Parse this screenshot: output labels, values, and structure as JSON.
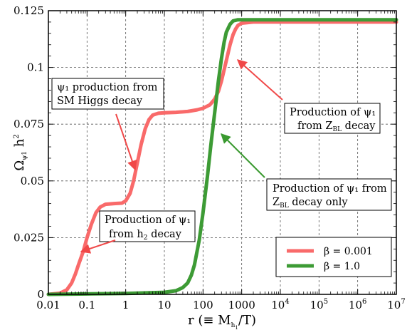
{
  "chart_data": {
    "type": "line",
    "xscale": "log",
    "xlim": [
      0.01,
      10000000
    ],
    "ylim": [
      0,
      0.125
    ],
    "grid": true,
    "xlabel": {
      "main": "r (≡ M",
      "sub1": "h",
      "sub2": "1",
      "tail": "/T)"
    },
    "ylabel": {
      "main": "Ω",
      "sub": "ψ1",
      "tail": " h",
      "sup": "2"
    },
    "x_ticks": [
      {
        "value": 0.01,
        "base": "0.01",
        "exp": ""
      },
      {
        "value": 0.1,
        "base": "0.1",
        "exp": ""
      },
      {
        "value": 1,
        "base": "1",
        "exp": ""
      },
      {
        "value": 10,
        "base": "10",
        "exp": ""
      },
      {
        "value": 100,
        "base": "100",
        "exp": ""
      },
      {
        "value": 1000,
        "base": "1000",
        "exp": ""
      },
      {
        "value": 10000,
        "base": "10",
        "exp": "4"
      },
      {
        "value": 100000,
        "base": "10",
        "exp": "5"
      },
      {
        "value": 1000000,
        "base": "10",
        "exp": "6"
      },
      {
        "value": 10000000,
        "base": "10",
        "exp": "7"
      }
    ],
    "y_ticks": [
      {
        "value": 0,
        "label": "0"
      },
      {
        "value": 0.025,
        "label": "0.025"
      },
      {
        "value": 0.05,
        "label": "0.05"
      },
      {
        "value": 0.075,
        "label": "0.075"
      },
      {
        "value": 0.1,
        "label": "0.1"
      },
      {
        "value": 0.125,
        "label": "0.125"
      }
    ],
    "series": [
      {
        "name": "β = 0.001",
        "color": "#f96a6a",
        "points": [
          [
            0.01,
            0.0
          ],
          [
            0.02,
            0.0005
          ],
          [
            0.03,
            0.002
          ],
          [
            0.04,
            0.005
          ],
          [
            0.05,
            0.009
          ],
          [
            0.06,
            0.013
          ],
          [
            0.08,
            0.019
          ],
          [
            0.1,
            0.025
          ],
          [
            0.13,
            0.031
          ],
          [
            0.17,
            0.036
          ],
          [
            0.22,
            0.0385
          ],
          [
            0.3,
            0.0397
          ],
          [
            0.5,
            0.04
          ],
          [
            0.8,
            0.0402
          ],
          [
            1.0,
            0.0412
          ],
          [
            1.3,
            0.0445
          ],
          [
            1.6,
            0.05
          ],
          [
            2.0,
            0.058
          ],
          [
            2.5,
            0.066
          ],
          [
            3.2,
            0.073
          ],
          [
            4.0,
            0.077
          ],
          [
            5.0,
            0.079
          ],
          [
            7.0,
            0.0798
          ],
          [
            10,
            0.08
          ],
          [
            20,
            0.0802
          ],
          [
            40,
            0.0806
          ],
          [
            70,
            0.0813
          ],
          [
            100,
            0.082
          ],
          [
            150,
            0.0835
          ],
          [
            200,
            0.086
          ],
          [
            250,
            0.0895
          ],
          [
            300,
            0.094
          ],
          [
            400,
            0.103
          ],
          [
            500,
            0.11
          ],
          [
            600,
            0.1145
          ],
          [
            700,
            0.117
          ],
          [
            800,
            0.1185
          ],
          [
            1000,
            0.1195
          ],
          [
            2000,
            0.12
          ],
          [
            10000000,
            0.12
          ]
        ]
      },
      {
        "name": "β = 1.0",
        "color": "#3d9b35",
        "points": [
          [
            0.01,
            0.0
          ],
          [
            0.1,
            0.0002
          ],
          [
            1,
            0.0004
          ],
          [
            10,
            0.0009
          ],
          [
            20,
            0.0016
          ],
          [
            30,
            0.003
          ],
          [
            40,
            0.005
          ],
          [
            50,
            0.0085
          ],
          [
            60,
            0.013
          ],
          [
            80,
            0.024
          ],
          [
            100,
            0.036
          ],
          [
            130,
            0.052
          ],
          [
            160,
            0.066
          ],
          [
            200,
            0.08
          ],
          [
            250,
            0.094
          ],
          [
            300,
            0.104
          ],
          [
            350,
            0.111
          ],
          [
            400,
            0.1155
          ],
          [
            500,
            0.119
          ],
          [
            600,
            0.1205
          ],
          [
            800,
            0.121
          ],
          [
            10000000,
            0.121
          ]
        ]
      }
    ]
  },
  "annotations": [
    {
      "lines": [
        "ψ₁ production from",
        "SM Higgs decay"
      ]
    },
    {
      "lines": [
        "Production of ψ₁",
        "from Z_BL decay"
      ]
    },
    {
      "lines": [
        "Production of ψ₁ from",
        "Z_BL decay only"
      ]
    },
    {
      "lines": [
        "Production of ψ₁",
        "from h₂ decay"
      ]
    }
  ],
  "ann_text": {
    "a1l1": "ψ₁ production from",
    "a1l2": "SM Higgs decay",
    "a2l1": "Production of ψ₁",
    "a2l2a": "from Z",
    "a2l2sub": "BL",
    "a2l2b": " decay",
    "a3l1": "Production of ψ₁ from",
    "a3l2a": "Z",
    "a3l2sub": "BL",
    "a3l2b": " decay only",
    "a4l1": "Production of ψ₁",
    "a4l2a": "from h",
    "a4l2sub": "2",
    "a4l2b": " decay"
  },
  "legend": {
    "item1": "β = 0.001",
    "item2": "β = 1.0"
  },
  "colors": {
    "red": "#f96a6a",
    "green": "#3d9b35",
    "arrow_red": "#f04848",
    "arrow_green": "#3a9a30"
  }
}
